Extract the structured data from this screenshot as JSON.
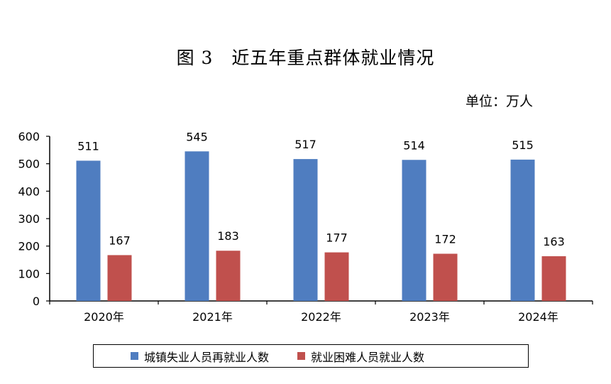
{
  "header": {
    "figure_number": "图 3",
    "title": "近五年重点群体就业情况",
    "unit": "单位：万人"
  },
  "chart_data": {
    "type": "bar",
    "title": "近五年重点群体就业情况",
    "categories": [
      "2020年",
      "2021年",
      "2022年",
      "2023年",
      "2024年"
    ],
    "series": [
      {
        "name": "城镇失业人员再就业人数",
        "values": [
          511,
          545,
          517,
          514,
          515
        ],
        "color": "#4f7dc0"
      },
      {
        "name": "就业困难人员就业人数",
        "values": [
          167,
          183,
          177,
          172,
          163
        ],
        "color": "#c0504d"
      }
    ],
    "ylim": [
      0,
      600
    ],
    "yticks": [
      "0",
      "100",
      "200",
      "300",
      "400",
      "500",
      "600"
    ],
    "xlabel": "",
    "ylabel": "",
    "grid": false,
    "legend_position": "bottom"
  }
}
